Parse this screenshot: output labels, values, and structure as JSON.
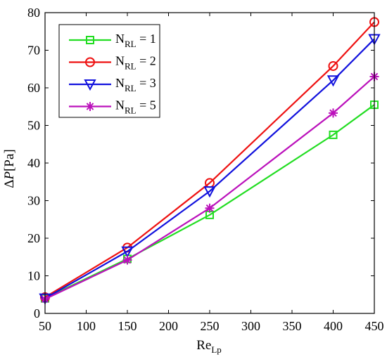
{
  "chart_data": {
    "type": "line",
    "x": [
      50,
      150,
      250,
      400,
      450
    ],
    "xlim": [
      50,
      450
    ],
    "ylim": [
      0,
      80
    ],
    "xticks": [
      50,
      100,
      150,
      200,
      250,
      300,
      350,
      400,
      450
    ],
    "yticks": [
      0,
      10,
      20,
      30,
      40,
      50,
      60,
      70,
      80
    ],
    "xlabel": {
      "base": "Re",
      "sub": "Lp"
    },
    "ylabel": {
      "delta": "Δ",
      "var": "P",
      "unit": "[Pa]"
    },
    "grid": false,
    "legend_position": "top-left",
    "series": [
      {
        "name": "N_RL = 1",
        "name_base": "N",
        "name_sub": "RL",
        "name_rest": " = 1",
        "color": "#22dd22",
        "marker": "square",
        "values": [
          4.0,
          14.5,
          26.2,
          47.5,
          55.5
        ]
      },
      {
        "name": "N_RL = 2",
        "name_base": "N",
        "name_sub": "RL",
        "name_rest": " = 2",
        "color": "#ee1111",
        "marker": "circle",
        "values": [
          4.3,
          17.5,
          34.7,
          65.8,
          77.5
        ]
      },
      {
        "name": "N_RL = 3",
        "name_base": "N",
        "name_sub": "RL",
        "name_rest": " = 3",
        "color": "#1111dd",
        "marker": "triangle-down",
        "values": [
          4.0,
          16.5,
          32.5,
          62.0,
          73.0
        ]
      },
      {
        "name": "N_RL = 5",
        "name_base": "N",
        "name_sub": "RL",
        "name_rest": " = 5",
        "color": "#bb11bb",
        "marker": "asterisk",
        "values": [
          3.8,
          14.2,
          28.0,
          53.3,
          63.0
        ]
      }
    ]
  }
}
